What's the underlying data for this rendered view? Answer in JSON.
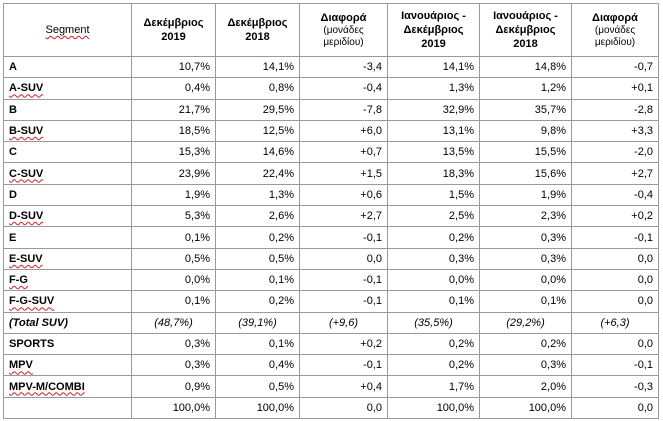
{
  "headers": {
    "segment": "Segment",
    "dec2019": "Δεκέμβριος 2019",
    "dec2018": "Δεκέμβριος 2018",
    "diff1": "Διαφορά",
    "diff1_sub": "(μονάδες μεριδίου)",
    "janDec2019": "Ιανουάριος - Δεκέμβριος 2019",
    "janDec2018": "Ιανουάριος - Δεκέμβριος 2018",
    "diff2": "Διαφορά",
    "diff2_sub": "(μονάδες μεριδίου)"
  },
  "rows": [
    {
      "name": "A",
      "d19": "10,7%",
      "d18": "14,1%",
      "diffm": "-3,4",
      "y19": "14,1%",
      "y18": "14,8%",
      "diffy": "-0,7"
    },
    {
      "name": "A-SUV",
      "d19": "0,4%",
      "d18": "0,8%",
      "diffm": "-0,4",
      "y19": "1,3%",
      "y18": "1,2%",
      "diffy": "+0,1"
    },
    {
      "name": "B",
      "d19": "21,7%",
      "d18": "29,5%",
      "diffm": "-7,8",
      "y19": "32,9%",
      "y18": "35,7%",
      "diffy": "-2,8"
    },
    {
      "name": "B-SUV",
      "d19": "18,5%",
      "d18": "12,5%",
      "diffm": "+6,0",
      "y19": "13,1%",
      "y18": "9,8%",
      "diffy": "+3,3"
    },
    {
      "name": "C",
      "d19": "15,3%",
      "d18": "14,6%",
      "diffm": "+0,7",
      "y19": "13,5%",
      "y18": "15,5%",
      "diffy": "-2,0"
    },
    {
      "name": "C-SUV",
      "d19": "23,9%",
      "d18": "22,4%",
      "diffm": "+1,5",
      "y19": "18,3%",
      "y18": "15,6%",
      "diffy": "+2,7"
    },
    {
      "name": "D",
      "d19": "1,9%",
      "d18": "1,3%",
      "diffm": "+0,6",
      "y19": "1,5%",
      "y18": "1,9%",
      "diffy": "-0,4"
    },
    {
      "name": "D-SUV",
      "d19": "5,3%",
      "d18": "2,6%",
      "diffm": "+2,7",
      "y19": "2,5%",
      "y18": "2,3%",
      "diffy": "+0,2"
    },
    {
      "name": "E",
      "d19": "0,1%",
      "d18": "0,2%",
      "diffm": "-0,1",
      "y19": "0,2%",
      "y18": "0,3%",
      "diffy": "-0,1"
    },
    {
      "name": "E-SUV",
      "d19": "0,5%",
      "d18": "0,5%",
      "diffm": "0,0",
      "y19": "0,3%",
      "y18": "0,3%",
      "diffy": "0,0"
    },
    {
      "name": "F-G",
      "d19": "0,0%",
      "d18": "0,1%",
      "diffm": "-0,1",
      "y19": "0,0%",
      "y18": "0,0%",
      "diffy": "0,0"
    },
    {
      "name": "F-G-SUV",
      "d19": "0,1%",
      "d18": "0,2%",
      "diffm": "-0,1",
      "y19": "0,1%",
      "y18": "0,1%",
      "diffy": "0,0"
    }
  ],
  "total_suv": {
    "name": "(Total SUV)",
    "d19": "(48,7%)",
    "d18": "(39,1%)",
    "diffm": "(+9,6)",
    "y19": "(35,5%)",
    "y18": "(29,2%)",
    "diffy": "(+6,3)"
  },
  "rows2": [
    {
      "name": "SPORTS",
      "d19": "0,3%",
      "d18": "0,1%",
      "diffm": "+0,2",
      "y19": "0,2%",
      "y18": "0,2%",
      "diffy": "0,0"
    },
    {
      "name": "MPV",
      "d19": "0,3%",
      "d18": "0,4%",
      "diffm": "-0,1",
      "y19": "0,2%",
      "y18": "0,3%",
      "diffy": "-0,1"
    },
    {
      "name": "MPV-M/COMBI",
      "d19": "0,9%",
      "d18": "0,5%",
      "diffm": "+0,4",
      "y19": "1,7%",
      "y18": "2,0%",
      "diffy": "-0,3"
    }
  ],
  "sum": {
    "name": "",
    "d19": "100,0%",
    "d18": "100,0%",
    "diffm": "0,0",
    "y19": "100,0%",
    "y18": "100,0%",
    "diffy": "0,0"
  }
}
